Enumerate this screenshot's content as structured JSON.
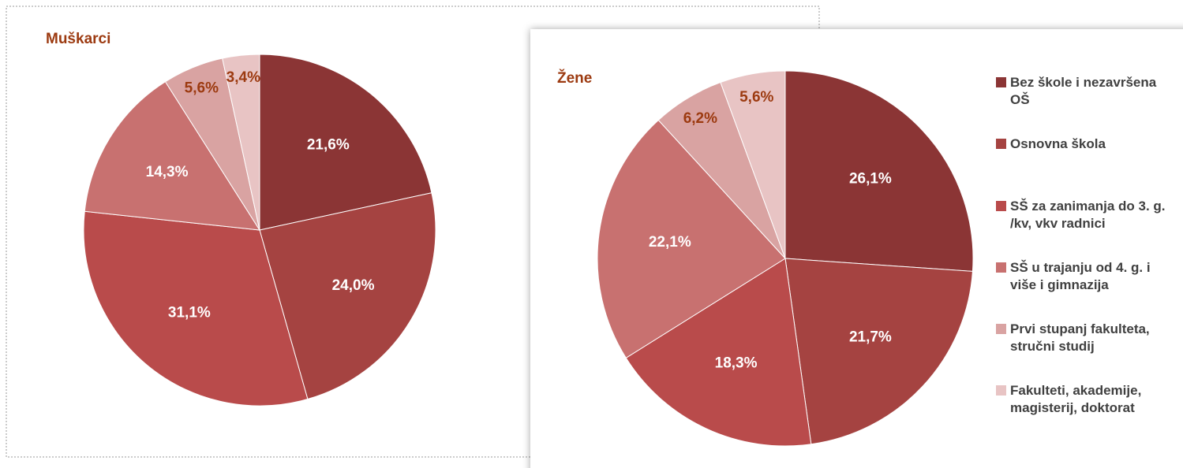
{
  "legend": {
    "categories": [
      "Bez škole i nezavršena OŠ",
      "Osnovna škola",
      "SŠ za zanimanja do 3. g. /kv, vkv radnici",
      "SŠ u trajanju od 4. g. i više i gimnazija",
      "Prvi stupanj fakulteta, stručni studij",
      "Fakulteti, akademije, magisterij, doktorat"
    ],
    "colors": [
      "#8b3535",
      "#a54341",
      "#b94b4b",
      "#c87170",
      "#d9a3a2",
      "#e8c4c4"
    ]
  },
  "chart_data": [
    {
      "type": "pie",
      "title": "Muškarci",
      "values": [
        21.6,
        24.0,
        31.1,
        14.3,
        5.6,
        3.4
      ],
      "value_labels": [
        "21,6%",
        "24,0%",
        "31,1%",
        "14,3%",
        "5,6%",
        "3,4%"
      ]
    },
    {
      "type": "pie",
      "title": "Žene",
      "values": [
        26.1,
        21.7,
        18.3,
        22.1,
        6.2,
        5.6
      ],
      "value_labels": [
        "26,1%",
        "21,7%",
        "18,3%",
        "22,1%",
        "6,2%",
        "5,6%"
      ]
    }
  ]
}
